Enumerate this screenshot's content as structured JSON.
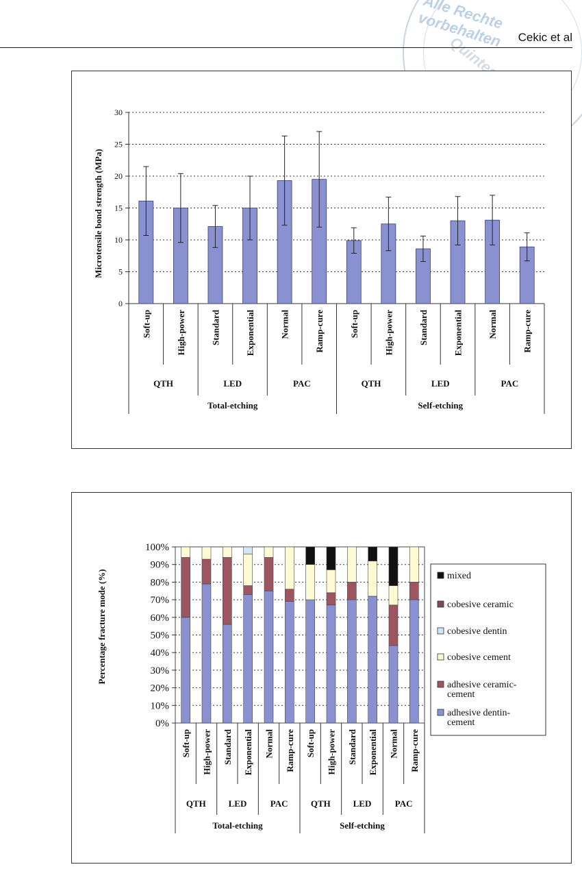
{
  "header": {
    "author": "Cekic et al"
  },
  "watermark": {
    "text": "Alle Rechte vorbehalten",
    "text2": "Quintessenz"
  },
  "chart_data": [
    {
      "type": "bar",
      "ylabel": "Microtensile bond strength (MPa)",
      "ylim": [
        0,
        30
      ],
      "yticks": [
        "0",
        "5",
        "10",
        "15",
        "20",
        "25",
        "30"
      ],
      "grid": true,
      "bar_color": "#8a91d1",
      "categories": [
        "Soft-up",
        "High-power",
        "Standard",
        "Exponential",
        "Normal",
        "Ramp-cure",
        "Soft-up",
        "High-power",
        "Standard",
        "Exponential",
        "Normal",
        "Ramp-cure"
      ],
      "light_groups": [
        "QTH",
        "LED",
        "PAC",
        "QTH",
        "LED",
        "PAC"
      ],
      "etch_groups": [
        "Total-etching",
        "Self-etching"
      ],
      "values": [
        16.1,
        15.0,
        12.1,
        15.0,
        19.3,
        19.5,
        9.9,
        12.5,
        8.6,
        13.0,
        13.1,
        8.9
      ],
      "errors": [
        5.4,
        5.4,
        3.3,
        5.0,
        7.0,
        7.5,
        2.0,
        4.2,
        2.0,
        3.8,
        3.9,
        2.2
      ]
    },
    {
      "type": "stacked-bar",
      "ylabel": "Percentage fracture mode (%)",
      "ylim": [
        0,
        100
      ],
      "yticks": [
        "0%",
        "10%",
        "20%",
        "30%",
        "40%",
        "50%",
        "60%",
        "70%",
        "80%",
        "90%",
        "100%"
      ],
      "grid": true,
      "legend_position": "right",
      "categories": [
        "Soft-up",
        "High-power",
        "Standard",
        "Exponential",
        "Normal",
        "Ramp-cure",
        "Soft-up",
        "High-power",
        "Standard",
        "Exponential",
        "Normal",
        "Ramp-cure"
      ],
      "light_groups": [
        "QTH",
        "LED",
        "PAC",
        "QTH",
        "LED",
        "PAC"
      ],
      "etch_groups": [
        "Total-etching",
        "Self-etching"
      ],
      "series": [
        {
          "name": "adhesive dentin-cement",
          "color": "#8a91d1",
          "values": [
            60,
            79,
            56,
            73,
            75,
            69,
            70,
            67,
            70,
            72,
            44,
            70
          ]
        },
        {
          "name": "adhesive ceramic-cement",
          "color": "#9d5560",
          "values": [
            34,
            14,
            38,
            5,
            19,
            7,
            0,
            7,
            10,
            0,
            23,
            10
          ]
        },
        {
          "name": "cobesive cement",
          "color": "#fdfbd3",
          "values": [
            6,
            7,
            6,
            18,
            6,
            24,
            20,
            13,
            20,
            20,
            11,
            20
          ]
        },
        {
          "name": "cobesive dentin",
          "color": "#cfe8f6",
          "values": [
            0,
            0,
            0,
            4,
            0,
            0,
            0,
            0,
            0,
            0,
            0,
            0
          ]
        },
        {
          "name": "cobesive ceramic",
          "color": "#7b4a55",
          "values": [
            0,
            0,
            0,
            0,
            0,
            0,
            0,
            0,
            0,
            0,
            0,
            0
          ]
        },
        {
          "name": "mixed",
          "color": "#111111",
          "values": [
            0,
            0,
            0,
            0,
            0,
            0,
            10,
            13,
            0,
            8,
            22,
            0
          ]
        }
      ],
      "legend_order": [
        "mixed",
        "cobesive ceramic",
        "cobesive dentin",
        "cobesive cement",
        "adhesive ceramic-cement",
        "adhesive dentin-cement"
      ]
    }
  ]
}
